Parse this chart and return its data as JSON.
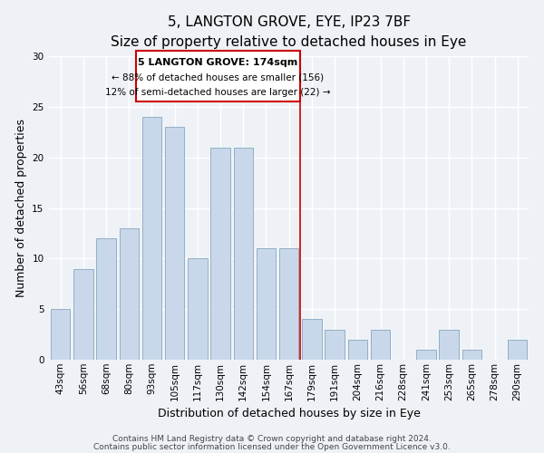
{
  "title": "5, LANGTON GROVE, EYE, IP23 7BF",
  "subtitle": "Size of property relative to detached houses in Eye",
  "xlabel": "Distribution of detached houses by size in Eye",
  "ylabel": "Number of detached properties",
  "bar_color": "#c8d8ea",
  "bar_edge_color": "#92afc5",
  "categories": [
    "43sqm",
    "56sqm",
    "68sqm",
    "80sqm",
    "93sqm",
    "105sqm",
    "117sqm",
    "130sqm",
    "142sqm",
    "154sqm",
    "167sqm",
    "179sqm",
    "191sqm",
    "204sqm",
    "216sqm",
    "228sqm",
    "241sqm",
    "253sqm",
    "265sqm",
    "278sqm",
    "290sqm"
  ],
  "values": [
    5,
    9,
    12,
    13,
    24,
    23,
    10,
    21,
    21,
    11,
    11,
    4,
    3,
    2,
    3,
    0,
    1,
    3,
    1,
    0,
    2
  ],
  "ylim": [
    0,
    30
  ],
  "yticks": [
    0,
    5,
    10,
    15,
    20,
    25,
    30
  ],
  "vline_index": 10.5,
  "annotation_title": "5 LANGTON GROVE: 174sqm",
  "annotation_line1": "← 88% of detached houses are smaller (156)",
  "annotation_line2": "12% of semi-detached houses are larger (22) →",
  "footer_line1": "Contains HM Land Registry data © Crown copyright and database right 2024.",
  "footer_line2": "Contains public sector information licensed under the Open Government Licence v3.0.",
  "background_color": "#eef2f7",
  "grid_color": "#ffffff",
  "vline_color": "#cc0000",
  "title_fontsize": 11,
  "subtitle_fontsize": 9,
  "axis_label_fontsize": 9,
  "tick_fontsize": 7.5,
  "footer_fontsize": 6.5,
  "annotation_fontsize_title": 8,
  "annotation_fontsize_body": 7.5
}
